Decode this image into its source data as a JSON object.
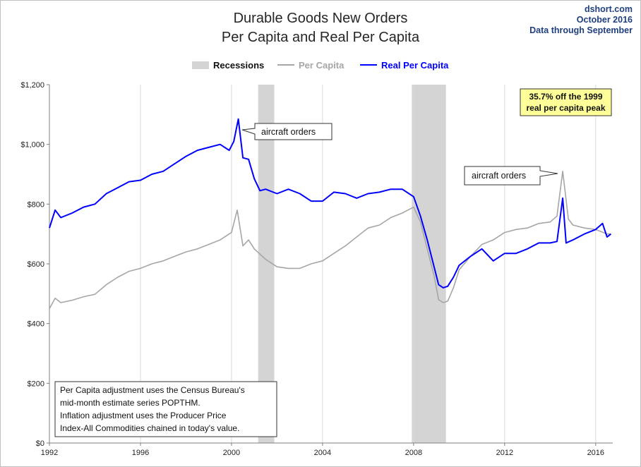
{
  "header": {
    "title_line1": "Durable Goods New Orders",
    "title_line2": "Per Capita and Real Per Capita",
    "source": "dshort.com",
    "date": "October 2016",
    "through": "Data through  September"
  },
  "legend": {
    "recessions": "Recessions",
    "per_capita": "Per Capita",
    "real_per_capita": "Real Per Capita"
  },
  "annotations": {
    "aircraft_2000": "aircraft orders",
    "aircraft_2014": "aircraft orders",
    "peak_line1": "35.7% off the 1999",
    "peak_line2": "real per capita peak"
  },
  "note": {
    "line1": "Per Capita adjustment uses the Census Bureau's",
    "line2": "mid-month estimate series POPTHM.",
    "line3": "Inflation adjustment uses the Producer Price",
    "line4": "Index-All Commodities chained in today's value."
  },
  "colors": {
    "per_capita": "#a6a6a6",
    "real_per_capita": "#0000ff",
    "recession": "#d4d4d4",
    "grid": "#d9d9d9",
    "title": "#262626",
    "meta": "#1f3f7f",
    "peak_box": "#ffff99"
  },
  "chart_data": {
    "type": "line",
    "title": "Durable Goods New Orders Per Capita and Real Per Capita",
    "xlabel": "",
    "ylabel": "",
    "xlim": [
      1992,
      2016.75
    ],
    "ylim": [
      0,
      1200
    ],
    "x_ticks": [
      1992,
      1996,
      2000,
      2004,
      2008,
      2012,
      2016
    ],
    "x_tick_labels": [
      "1992",
      "1996",
      "2000",
      "2004",
      "2008",
      "2012",
      "2016"
    ],
    "y_ticks": [
      0,
      200,
      400,
      600,
      800,
      1000,
      1200
    ],
    "y_tick_labels": [
      "$0",
      "$200",
      "$400",
      "$600",
      "$800",
      "$1,000",
      "$1,200"
    ],
    "grid": "vertical",
    "legend_position": "top-center",
    "recessions": [
      {
        "start": 2001.17,
        "end": 2001.88
      },
      {
        "start": 2007.92,
        "end": 2009.42
      }
    ],
    "series": [
      {
        "name": "Per Capita",
        "x": [
          1992.0,
          1992.25,
          1992.5,
          1993.0,
          1993.5,
          1994.0,
          1994.5,
          1995.0,
          1995.5,
          1996.0,
          1996.5,
          1997.0,
          1997.5,
          1998.0,
          1998.5,
          1999.0,
          1999.5,
          2000.0,
          2000.25,
          2000.5,
          2000.75,
          2001.0,
          2001.5,
          2002.0,
          2002.5,
          2003.0,
          2003.5,
          2004.0,
          2004.5,
          2005.0,
          2005.5,
          2006.0,
          2006.5,
          2007.0,
          2007.5,
          2008.0,
          2008.3,
          2008.6,
          2008.9,
          2009.1,
          2009.3,
          2009.5,
          2009.75,
          2010.0,
          2010.5,
          2011.0,
          2011.5,
          2012.0,
          2012.5,
          2013.0,
          2013.5,
          2014.0,
          2014.3,
          2014.55,
          2014.8,
          2015.0,
          2015.5,
          2016.0,
          2016.5,
          2016.67
        ],
        "values": [
          450,
          485,
          470,
          478,
          490,
          498,
          530,
          555,
          575,
          585,
          600,
          610,
          625,
          640,
          650,
          665,
          680,
          705,
          780,
          660,
          680,
          650,
          615,
          590,
          585,
          585,
          600,
          610,
          635,
          660,
          690,
          720,
          730,
          755,
          770,
          790,
          740,
          650,
          560,
          480,
          470,
          475,
          520,
          580,
          625,
          665,
          680,
          705,
          715,
          720,
          735,
          740,
          760,
          910,
          750,
          730,
          720,
          715,
          700,
          700
        ]
      },
      {
        "name": "Real Per Capita",
        "x": [
          1992.0,
          1992.25,
          1992.5,
          1993.0,
          1993.5,
          1994.0,
          1994.5,
          1995.0,
          1995.5,
          1996.0,
          1996.5,
          1997.0,
          1997.5,
          1998.0,
          1998.5,
          1999.0,
          1999.5,
          1999.9,
          2000.1,
          2000.3,
          2000.5,
          2000.75,
          2001.0,
          2001.25,
          2001.5,
          2002.0,
          2002.5,
          2003.0,
          2003.5,
          2004.0,
          2004.5,
          2005.0,
          2005.5,
          2006.0,
          2006.5,
          2007.0,
          2007.5,
          2008.0,
          2008.3,
          2008.6,
          2008.9,
          2009.1,
          2009.3,
          2009.5,
          2009.75,
          2010.0,
          2010.5,
          2011.0,
          2011.5,
          2012.0,
          2012.5,
          2013.0,
          2013.5,
          2014.0,
          2014.3,
          2014.55,
          2014.7,
          2015.0,
          2015.5,
          2016.0,
          2016.3,
          2016.5,
          2016.67
        ],
        "values": [
          720,
          780,
          755,
          770,
          790,
          800,
          835,
          855,
          875,
          880,
          900,
          910,
          935,
          960,
          980,
          990,
          1000,
          980,
          1010,
          1085,
          955,
          950,
          885,
          845,
          850,
          835,
          850,
          835,
          810,
          810,
          840,
          835,
          820,
          835,
          840,
          850,
          850,
          825,
          760,
          680,
          590,
          530,
          520,
          525,
          555,
          595,
          625,
          650,
          610,
          635,
          635,
          650,
          670,
          670,
          675,
          820,
          670,
          680,
          700,
          715,
          735,
          690,
          700
        ]
      }
    ]
  }
}
